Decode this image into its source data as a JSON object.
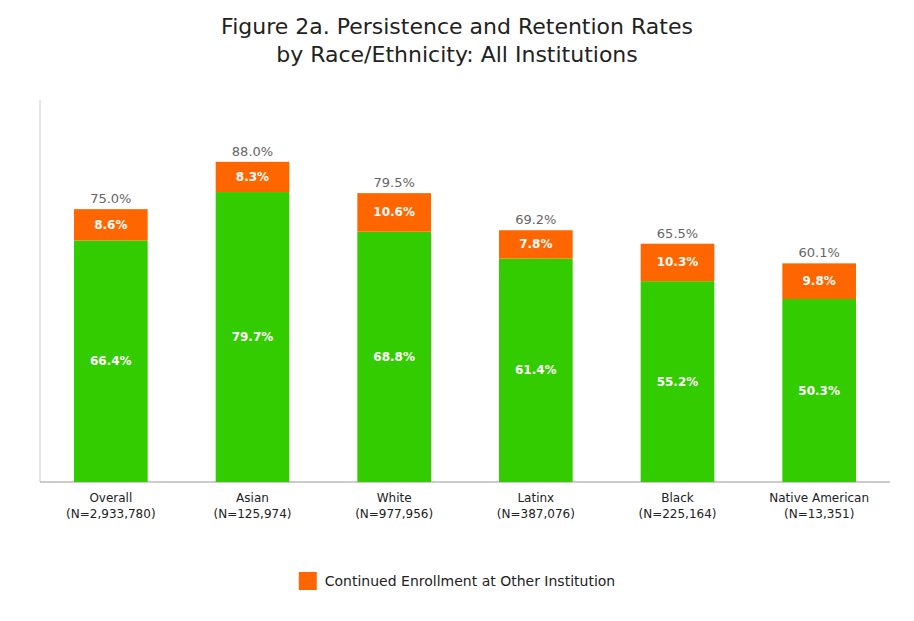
{
  "chart_data": {
    "type": "bar",
    "title": "Figure 2a. Persistence and Retention Rates\nby Race/Ethnicity: All Institutions",
    "categories": [
      "Overall\n(N=2,933,780)",
      "Asian\n(N=125,974)",
      "White\n(N=977,956)",
      "Latinx\n(N=387,076)",
      "Black\n(N=225,164)",
      "Native American\n(N=13,351)"
    ],
    "series": [
      {
        "color": "#33cc00",
        "values": [
          66.4,
          79.7,
          68.8,
          61.4,
          55.2,
          50.3
        ],
        "value_labels": [
          "66.4%",
          "79.7%",
          "68.8%",
          "61.4%",
          "55.2%",
          "50.3%"
        ]
      },
      {
        "name": "Continued Enrollment at Other Institution",
        "color": "#ff6600",
        "values": [
          8.6,
          8.3,
          10.6,
          7.8,
          10.3,
          9.8
        ],
        "value_labels": [
          "8.6%",
          "8.3%",
          "10.6%",
          "7.8%",
          "10.3%",
          "9.8%"
        ]
      }
    ],
    "totals": [
      75.0,
      88.0,
      79.5,
      69.2,
      65.5,
      60.1
    ],
    "total_labels": [
      "75.0%",
      "88.0%",
      "79.5%",
      "69.2%",
      "65.5%",
      "60.1%"
    ],
    "stacked": true,
    "data_labels": true,
    "ylim": [
      0,
      105
    ],
    "grid": false,
    "tick_labels": "x",
    "legend": "bottom"
  }
}
